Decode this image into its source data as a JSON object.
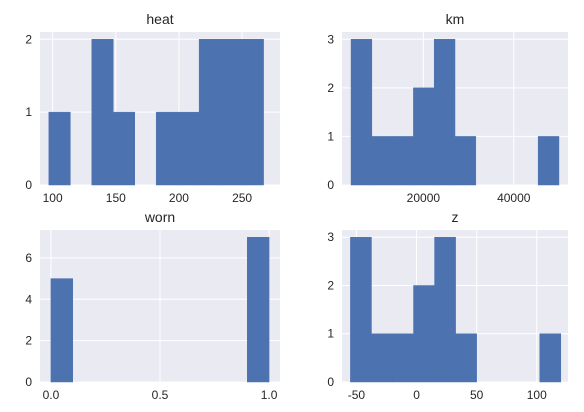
{
  "chart_data": [
    {
      "type": "bar",
      "subtype": "histogram",
      "title": "heat",
      "xlim": [
        90,
        280
      ],
      "ylim": [
        0,
        2.1
      ],
      "xticks": [
        100,
        150,
        200,
        250
      ],
      "yticks": [
        0,
        1,
        2
      ],
      "bins": [
        {
          "x0": 97,
          "x1": 114,
          "count": 1
        },
        {
          "x0": 114,
          "x1": 131,
          "count": 0
        },
        {
          "x0": 131,
          "x1": 148,
          "count": 2
        },
        {
          "x0": 148,
          "x1": 165,
          "count": 1
        },
        {
          "x0": 165,
          "x1": 182,
          "count": 0
        },
        {
          "x0": 182,
          "x1": 199,
          "count": 1
        },
        {
          "x0": 199,
          "x1": 216,
          "count": 1
        },
        {
          "x0": 216,
          "x1": 233,
          "count": 2
        },
        {
          "x0": 233,
          "x1": 250,
          "count": 2
        },
        {
          "x0": 250,
          "x1": 267,
          "count": 2
        }
      ],
      "grid": true
    },
    {
      "type": "bar",
      "subtype": "histogram",
      "title": "km",
      "xlim": [
        2000,
        52000
      ],
      "ylim": [
        0,
        3.15
      ],
      "xticks": [
        20000,
        40000
      ],
      "yticks": [
        0,
        1,
        2,
        3
      ],
      "bins": [
        {
          "x0": 4000,
          "x1": 8600,
          "count": 3
        },
        {
          "x0": 8600,
          "x1": 13200,
          "count": 1
        },
        {
          "x0": 13200,
          "x1": 17800,
          "count": 1
        },
        {
          "x0": 17800,
          "x1": 22400,
          "count": 2
        },
        {
          "x0": 22400,
          "x1": 27000,
          "count": 3
        },
        {
          "x0": 27000,
          "x1": 31600,
          "count": 1
        },
        {
          "x0": 31600,
          "x1": 36200,
          "count": 0
        },
        {
          "x0": 36200,
          "x1": 40800,
          "count": 0
        },
        {
          "x0": 40800,
          "x1": 45400,
          "count": 0
        },
        {
          "x0": 45400,
          "x1": 50000,
          "count": 1
        }
      ],
      "grid": true
    },
    {
      "type": "bar",
      "subtype": "histogram",
      "title": "worn",
      "xlim": [
        -0.05,
        1.05
      ],
      "ylim": [
        0,
        7.35
      ],
      "xticks": [
        0.0,
        0.5,
        1.0
      ],
      "xtick_labels": [
        "0.0",
        "0.5",
        "1.0"
      ],
      "yticks": [
        0,
        2,
        4,
        6
      ],
      "bins": [
        {
          "x0": 0.0,
          "x1": 0.1,
          "count": 5
        },
        {
          "x0": 0.1,
          "x1": 0.2,
          "count": 0
        },
        {
          "x0": 0.2,
          "x1": 0.3,
          "count": 0
        },
        {
          "x0": 0.3,
          "x1": 0.4,
          "count": 0
        },
        {
          "x0": 0.4,
          "x1": 0.5,
          "count": 0
        },
        {
          "x0": 0.5,
          "x1": 0.6,
          "count": 0
        },
        {
          "x0": 0.6,
          "x1": 0.7,
          "count": 0
        },
        {
          "x0": 0.7,
          "x1": 0.8,
          "count": 0
        },
        {
          "x0": 0.8,
          "x1": 0.9,
          "count": 0
        },
        {
          "x0": 0.9,
          "x1": 1.0,
          "count": 7
        }
      ],
      "grid": true
    },
    {
      "type": "bar",
      "subtype": "histogram",
      "title": "z",
      "xlim": [
        -62,
        126
      ],
      "ylim": [
        0,
        3.15
      ],
      "xticks": [
        -50,
        0,
        50,
        100
      ],
      "yticks": [
        0,
        1,
        2,
        3
      ],
      "bins": [
        {
          "x0": -55,
          "x1": -37.5,
          "count": 3
        },
        {
          "x0": -37.5,
          "x1": -20,
          "count": 1
        },
        {
          "x0": -20,
          "x1": -2.5,
          "count": 1
        },
        {
          "x0": -2.5,
          "x1": 15,
          "count": 2
        },
        {
          "x0": 15,
          "x1": 32.5,
          "count": 3
        },
        {
          "x0": 32.5,
          "x1": 50,
          "count": 1
        },
        {
          "x0": 50,
          "x1": 67.5,
          "count": 0
        },
        {
          "x0": 67.5,
          "x1": 85,
          "count": 0
        },
        {
          "x0": 85,
          "x1": 102.5,
          "count": 0
        },
        {
          "x0": 102.5,
          "x1": 120,
          "count": 1
        }
      ],
      "grid": true
    }
  ],
  "colors": {
    "background": "#eaeaf2",
    "bar": "#4c72b0",
    "grid": "#ffffff",
    "text": "#262626"
  }
}
